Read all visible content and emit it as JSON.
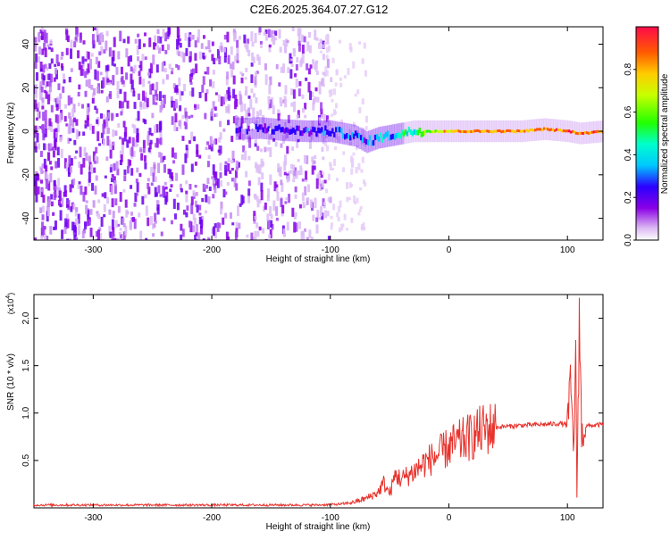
{
  "title": "C2E6.2025.364.07.27.G12",
  "colors": {
    "snr_line": "#e8322c",
    "axis": "#000000"
  },
  "chart_data": [
    {
      "type": "heatmap",
      "xlabel": "Height of straight line (km)",
      "ylabel": "Frequency (Hz)",
      "xlim": [
        -350,
        130
      ],
      "ylim": [
        -50,
        48
      ],
      "x_ticks": [
        -300,
        -200,
        -100,
        0,
        100
      ],
      "x_tick_labels": [
        "-300",
        "-200",
        "-100",
        "0",
        "100"
      ],
      "y_ticks": [
        -40,
        -20,
        0,
        20,
        40
      ],
      "y_tick_labels": [
        "-40",
        "-20",
        "0",
        "20",
        "40"
      ],
      "colorbar": {
        "label": "Normalized spectral amplitude",
        "range": [
          0,
          1
        ],
        "ticks": [
          0.0,
          0.2,
          0.4,
          0.6,
          0.8
        ],
        "tick_labels": [
          "0.0",
          "0.2",
          "0.4",
          "0.6",
          "0.8"
        ],
        "colormap": "rainbow"
      },
      "ridge": {
        "x": [
          -180,
          -160,
          -140,
          -120,
          -100,
          -90,
          -80,
          -70,
          -60,
          -50,
          -40,
          -30,
          -20,
          -10,
          0,
          20,
          40,
          60,
          80,
          100,
          110,
          130
        ],
        "frequency": [
          1,
          1.5,
          0.5,
          0,
          0,
          -1,
          -2,
          -5,
          -3,
          -2,
          -1,
          0,
          0,
          0,
          0,
          0,
          0,
          0,
          1,
          0,
          -1,
          0
        ],
        "amplitude": [
          0.2,
          0.22,
          0.25,
          0.28,
          0.3,
          0.35,
          0.35,
          0.3,
          0.45,
          0.4,
          0.5,
          0.5,
          0.7,
          0.75,
          0.85,
          0.9,
          0.88,
          0.9,
          0.9,
          0.92,
          0.95,
          0.9
        ]
      }
    },
    {
      "type": "line",
      "xlabel": "Height of straight line (km)",
      "ylabel": "SNR (10 * v/v)",
      "y_multiplier": "(x10",
      "y_multiplier_exp": "4",
      "y_multiplier_close": ")",
      "xlim": [
        -350,
        130
      ],
      "ylim": [
        0,
        22500
      ],
      "x_ticks": [
        -300,
        -200,
        -100,
        0,
        100
      ],
      "x_tick_labels": [
        "-300",
        "-200",
        "-100",
        "0",
        "100"
      ],
      "y_ticks": [
        5000,
        10000,
        15000,
        20000
      ],
      "y_tick_labels": [
        "0.5",
        "1.0",
        "1.5",
        "2.0"
      ],
      "series": [
        {
          "x": [
            -350,
            -300,
            -250,
            -200,
            -150,
            -110,
            -90,
            -80,
            -70,
            -60,
            -55,
            -50,
            -45,
            -40,
            -30,
            -20,
            -10,
            0,
            10,
            20,
            30,
            40,
            60,
            80,
            95,
            100,
            103,
            105,
            107,
            108,
            110,
            112,
            115,
            130
          ],
          "y": [
            300,
            300,
            300,
            300,
            300,
            300,
            400,
            600,
            1000,
            1600,
            2600,
            1500,
            3500,
            3000,
            3800,
            4800,
            5500,
            6400,
            7000,
            7600,
            8300,
            8500,
            8700,
            8800,
            8900,
            8700,
            13000,
            6000,
            15000,
            1200,
            20500,
            7500,
            8600,
            8800
          ]
        }
      ]
    }
  ]
}
